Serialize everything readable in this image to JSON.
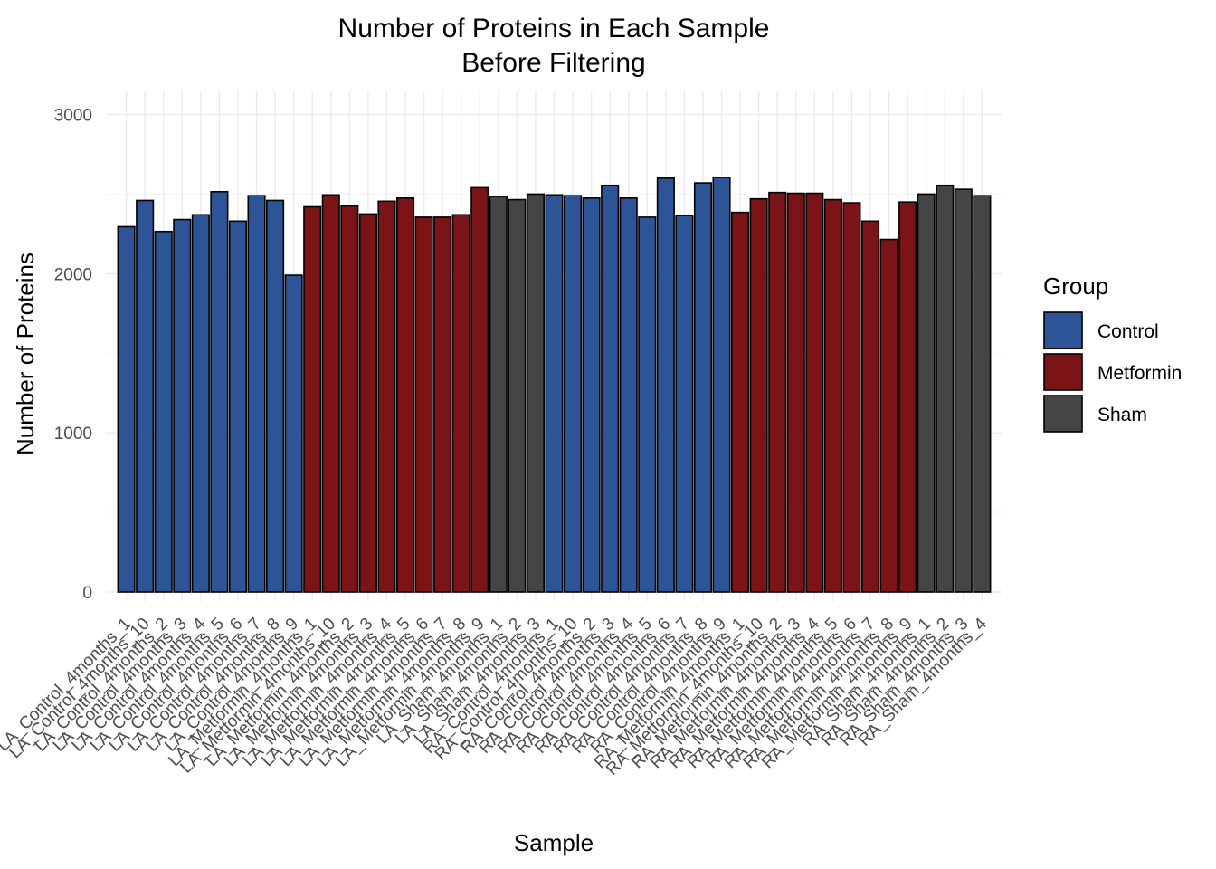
{
  "chart_data": {
    "type": "bar",
    "title": "Number of Proteins in Each Sample\nBefore Filtering",
    "xlabel": "Sample",
    "ylabel": "Number of Proteins",
    "ylim": [
      0,
      3150
    ],
    "yticks": [
      0,
      1000,
      2000,
      3000
    ],
    "grid": true,
    "legend": {
      "title": "Group",
      "position": "right",
      "entries": [
        {
          "name": "Control",
          "color": "#2c5496"
        },
        {
          "name": "Metformin",
          "color": "#7b1416"
        },
        {
          "name": "Sham",
          "color": "#454545"
        }
      ]
    },
    "categories": [
      "LA_Control_4months_1",
      "LA_Control_4months_10",
      "LA_Control_4months_2",
      "LA_Control_4months_3",
      "LA_Control_4months_4",
      "LA_Control_4months_5",
      "LA_Control_4months_6",
      "LA_Control_4months_7",
      "LA_Control_4months_8",
      "LA_Control_4months_9",
      "LA_Metformin_4months_1",
      "LA_Metformin_4months_10",
      "LA_Metformin_4months_2",
      "LA_Metformin_4months_3",
      "LA_Metformin_4months_4",
      "LA_Metformin_4months_5",
      "LA_Metformin_4months_6",
      "LA_Metformin_4months_7",
      "LA_Metformin_4months_8",
      "LA_Metformin_4months_9",
      "LA_Sham_4months_1",
      "LA_Sham_4months_2",
      "LA_Sham_4months_3",
      "RA_Control_4months_1",
      "RA_Control_4months_10",
      "RA_Control_4months_2",
      "RA_Control_4months_3",
      "RA_Control_4months_4",
      "RA_Control_4months_5",
      "RA_Control_4months_6",
      "RA_Control_4months_7",
      "RA_Control_4months_8",
      "RA_Control_4months_9",
      "RA_Metformin_4months_1",
      "RA_Metformin_4months_10",
      "RA_Metformin_4months_2",
      "RA_Metformin_4months_3",
      "RA_Metformin_4months_4",
      "RA_Metformin_4months_5",
      "RA_Metformin_4months_6",
      "RA_Metformin_4months_7",
      "RA_Metformin_4months_8",
      "RA_Metformin_4months_9",
      "RA_Sham_4months_1",
      "RA_Sham_4months_2",
      "RA_Sham_4months_3",
      "RA_Sham_4months_4"
    ],
    "groups": [
      "Control",
      "Control",
      "Control",
      "Control",
      "Control",
      "Control",
      "Control",
      "Control",
      "Control",
      "Control",
      "Metformin",
      "Metformin",
      "Metformin",
      "Metformin",
      "Metformin",
      "Metformin",
      "Metformin",
      "Metformin",
      "Metformin",
      "Metformin",
      "Sham",
      "Sham",
      "Sham",
      "Control",
      "Control",
      "Control",
      "Control",
      "Control",
      "Control",
      "Control",
      "Control",
      "Control",
      "Control",
      "Metformin",
      "Metformin",
      "Metformin",
      "Metformin",
      "Metformin",
      "Metformin",
      "Metformin",
      "Metformin",
      "Metformin",
      "Metformin",
      "Sham",
      "Sham",
      "Sham",
      "Sham"
    ],
    "values": [
      2295,
      2460,
      2265,
      2340,
      2370,
      2515,
      2330,
      2490,
      2460,
      1990,
      2420,
      2495,
      2425,
      2375,
      2455,
      2475,
      2355,
      2355,
      2370,
      2540,
      2485,
      2465,
      2500,
      2495,
      2490,
      2475,
      2555,
      2475,
      2355,
      2600,
      2365,
      2570,
      2605,
      2385,
      2470,
      2510,
      2505,
      2505,
      2465,
      2445,
      2330,
      2215,
      2450,
      2500,
      2555,
      2530,
      2490
    ]
  }
}
